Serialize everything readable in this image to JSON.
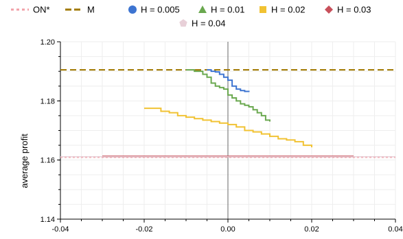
{
  "chart_data": {
    "type": "line",
    "title": "",
    "xlabel": "",
    "ylabel": "average profit",
    "xlim": [
      -0.04,
      0.04
    ],
    "ylim": [
      1.14,
      1.2
    ],
    "xticks": [
      -0.04,
      -0.02,
      0.0,
      0.02,
      0.04
    ],
    "xtick_labels": [
      "-0.04",
      "-0.02",
      "0.00",
      "0.02",
      "0.04"
    ],
    "yticks": [
      1.14,
      1.16,
      1.18,
      1.2
    ],
    "ytick_labels": [
      "1.14",
      "1.16",
      "1.18",
      "1.20"
    ],
    "grid": true,
    "legend_position": "top",
    "series": [
      {
        "name": "ON*",
        "color": "#f2a0a8",
        "style": "dotted",
        "marker": "line",
        "x": [
          -0.04,
          0.04
        ],
        "y": [
          1.161,
          1.161
        ]
      },
      {
        "name": "M",
        "color": "#a07800",
        "style": "dashed",
        "marker": "line",
        "x": [
          -0.04,
          0.04
        ],
        "y": [
          1.1905,
          1.1905
        ]
      },
      {
        "name": "H = 0.005",
        "color": "#3d74d1",
        "style": "solid",
        "marker": "circle",
        "x": [
          -0.005,
          -0.004,
          -0.003,
          -0.002,
          -0.001,
          0.0,
          0.001,
          0.002,
          0.003,
          0.004,
          0.005
        ],
        "y": [
          1.1905,
          1.19,
          1.1898,
          1.189,
          1.188,
          1.187,
          1.185,
          1.184,
          1.1835,
          1.1832,
          1.183
        ]
      },
      {
        "name": "H = 0.01",
        "color": "#6aa84f",
        "style": "solid",
        "marker": "triangle",
        "x": [
          -0.01,
          -0.008,
          -0.006,
          -0.005,
          -0.004,
          -0.003,
          -0.002,
          -0.001,
          0.0,
          0.001,
          0.002,
          0.003,
          0.004,
          0.005,
          0.006,
          0.007,
          0.008,
          0.009,
          0.01
        ],
        "y": [
          1.1905,
          1.19,
          1.189,
          1.188,
          1.186,
          1.185,
          1.1845,
          1.184,
          1.182,
          1.181,
          1.18,
          1.179,
          1.1785,
          1.178,
          1.177,
          1.176,
          1.175,
          1.1735,
          1.173
        ]
      },
      {
        "name": "H = 0.02",
        "color": "#f1c232",
        "style": "solid",
        "marker": "square",
        "x": [
          -0.02,
          -0.018,
          -0.016,
          -0.014,
          -0.012,
          -0.01,
          -0.008,
          -0.006,
          -0.004,
          -0.002,
          0.0,
          0.002,
          0.004,
          0.006,
          0.008,
          0.01,
          0.012,
          0.014,
          0.016,
          0.018,
          0.02
        ],
        "y": [
          1.1775,
          1.1775,
          1.1765,
          1.176,
          1.175,
          1.1745,
          1.174,
          1.1735,
          1.173,
          1.1725,
          1.172,
          1.1712,
          1.17,
          1.1695,
          1.1688,
          1.168,
          1.1672,
          1.1668,
          1.1662,
          1.165,
          1.1643
        ]
      },
      {
        "name": "H = 0.03",
        "color": "#c8505b",
        "style": "solid",
        "marker": "diamond",
        "x": [
          -0.03,
          0.03
        ],
        "y": [
          1.1612,
          1.1612
        ]
      },
      {
        "name": "H = 0.04",
        "color": "#e8d0d8",
        "style": "solid",
        "marker": "pentagon",
        "x": [
          -0.04,
          0.04
        ],
        "y": [
          1.1611,
          1.1611
        ]
      }
    ]
  }
}
